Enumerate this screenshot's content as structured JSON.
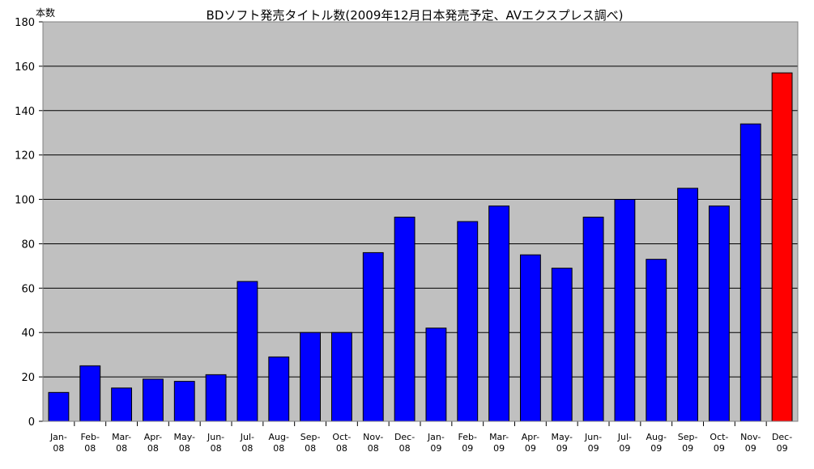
{
  "chart_data": {
    "type": "bar",
    "title": "BDソフト発売タイトル数(2009年12月日本発売予定、AVエクスプレス調べ)",
    "ylabel": "本数",
    "xlabel": "",
    "ylim": [
      0,
      180
    ],
    "ytick_step": 20,
    "grid": true,
    "legend": "none",
    "colors": {
      "bar": "#0000ff",
      "highlight": "#ff0000",
      "plot_bg": "#c0c0c0",
      "grid": "#000000"
    },
    "highlight_index": 23,
    "categories": [
      [
        "Jan-",
        "08"
      ],
      [
        "Feb-",
        "08"
      ],
      [
        "Mar-",
        "08"
      ],
      [
        "Apr-",
        "08"
      ],
      [
        "May-",
        "08"
      ],
      [
        "Jun-",
        "08"
      ],
      [
        "Jul-",
        "08"
      ],
      [
        "Aug-",
        "08"
      ],
      [
        "Sep-",
        "08"
      ],
      [
        "Oct-",
        "08"
      ],
      [
        "Nov-",
        "08"
      ],
      [
        "Dec-",
        "08"
      ],
      [
        "Jan-",
        "09"
      ],
      [
        "Feb-",
        "09"
      ],
      [
        "Mar-",
        "09"
      ],
      [
        "Apr-",
        "09"
      ],
      [
        "May-",
        "09"
      ],
      [
        "Jun-",
        "09"
      ],
      [
        "Jul-",
        "09"
      ],
      [
        "Aug-",
        "09"
      ],
      [
        "Sep-",
        "09"
      ],
      [
        "Oct-",
        "09"
      ],
      [
        "Nov-",
        "09"
      ],
      [
        "Dec-",
        "09"
      ]
    ],
    "values": [
      13,
      25,
      15,
      19,
      18,
      21,
      63,
      29,
      40,
      40,
      76,
      92,
      42,
      90,
      97,
      75,
      69,
      92,
      100,
      73,
      105,
      97,
      134,
      157
    ]
  }
}
